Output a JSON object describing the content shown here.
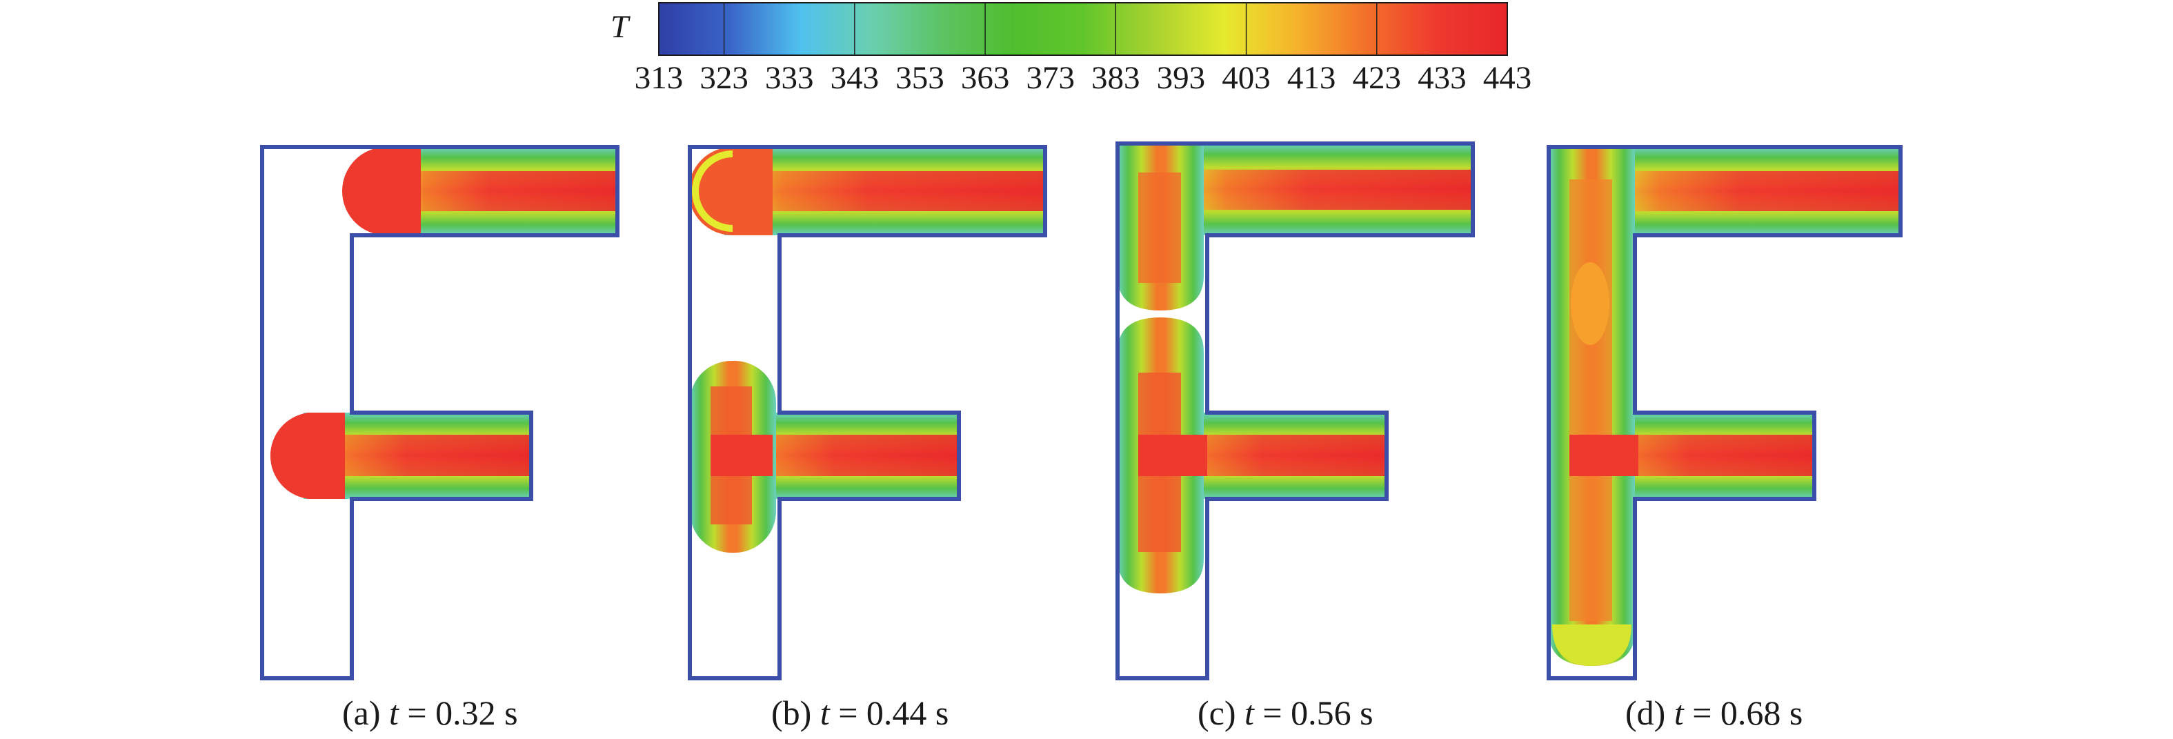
{
  "colorbar": {
    "variable": "T",
    "ticks": [
      "313",
      "323",
      "333",
      "343",
      "353",
      "363",
      "373",
      "383",
      "393",
      "403",
      "413",
      "423",
      "433",
      "443"
    ],
    "min": 313,
    "max": 443,
    "palette": [
      "#2f3fa6",
      "#3a64c8",
      "#4fc1ee",
      "#6acfb0",
      "#5cc464",
      "#4fbe2e",
      "#61c62b",
      "#a8d22f",
      "#e6ea2d",
      "#f5b42b",
      "#f3702a",
      "#ee3a2e",
      "#e8262a"
    ]
  },
  "panels": [
    {
      "id": "a",
      "label_prefix": "(a) ",
      "var": "t",
      "equals": " = ",
      "value": "0.32",
      "unit": " s",
      "stage": "early"
    },
    {
      "id": "b",
      "label_prefix": "(b) ",
      "var": "t",
      "equals": " = ",
      "value": "0.44",
      "unit": " s",
      "stage": "mid"
    },
    {
      "id": "c",
      "label_prefix": "(c) ",
      "var": "t",
      "equals": " = ",
      "value": "0.56",
      "unit": " s",
      "stage": "merging"
    },
    {
      "id": "d",
      "label_prefix": "(d) ",
      "var": "t",
      "equals": " = ",
      "value": "0.68",
      "unit": " s",
      "stage": "filled"
    }
  ]
}
